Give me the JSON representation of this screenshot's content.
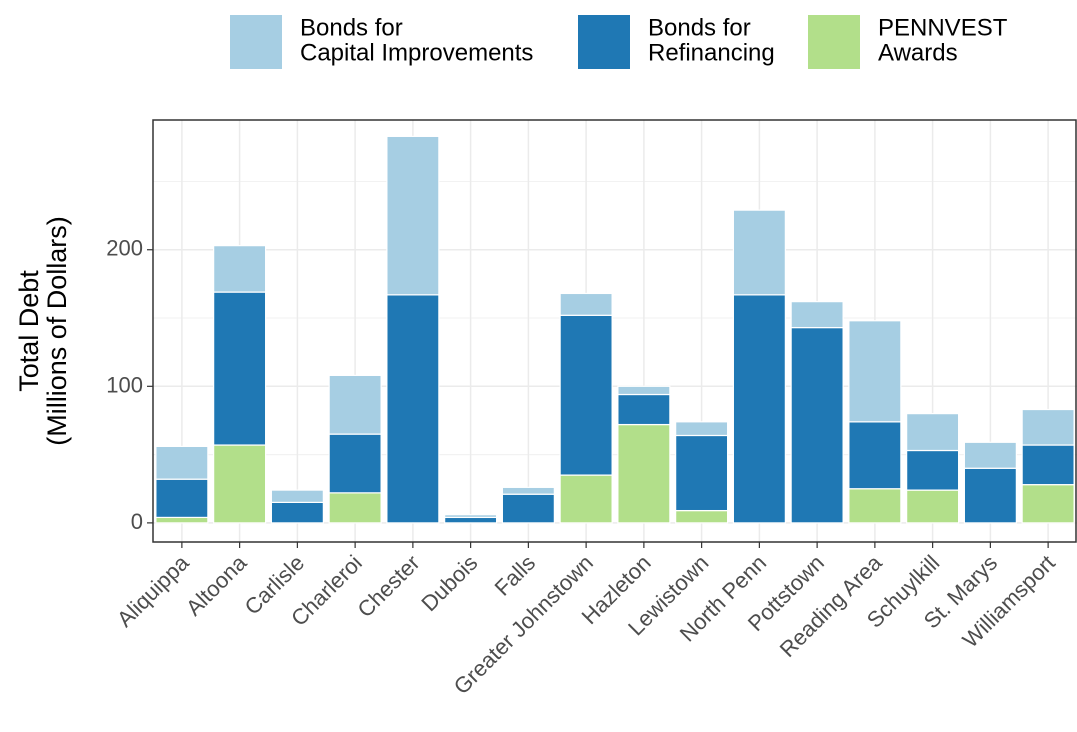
{
  "chart_data": {
    "type": "stacked_bar",
    "y_label": "Total Debt\n(Millions of Dollars)",
    "categories": [
      "Aliquippa",
      "Altoona",
      "Carlisle",
      "Charleroi",
      "Chester",
      "Dubois",
      "Falls",
      "Greater Johnstown",
      "Hazleton",
      "Lewistown",
      "North Penn",
      "Pottstown",
      "Reading Area",
      "Schuylkill",
      "St. Marys",
      "Williamsport"
    ],
    "series": [
      {
        "name": "PENNVEST\nAwards",
        "color": "#b2df8a",
        "values": [
          4,
          57,
          0,
          22,
          0,
          0,
          0,
          35,
          72,
          9,
          0,
          0,
          25,
          24,
          0,
          28
        ]
      },
      {
        "name": "Bonds for\nRefinancing",
        "color": "#1f78b4",
        "values": [
          28,
          112,
          15,
          43,
          167,
          4,
          21,
          117,
          22,
          55,
          167,
          143,
          49,
          29,
          40,
          29
        ]
      },
      {
        "name": "Bonds for\nCapital Improvements",
        "color": "#a6cee3",
        "values": [
          24,
          34,
          9,
          43,
          116,
          2,
          5,
          16,
          6,
          10,
          62,
          19,
          74,
          27,
          19,
          26
        ]
      }
    ],
    "legend_order": [
      2,
      1,
      0
    ],
    "ylim": [
      -14,
      295
    ],
    "yticks": [
      0,
      100,
      200
    ],
    "grid": true
  }
}
